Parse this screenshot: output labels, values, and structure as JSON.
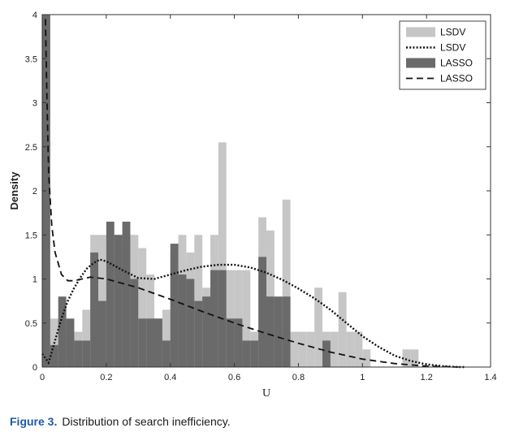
{
  "chart_data": {
    "type": "bar",
    "title": "",
    "xlabel": "U",
    "ylabel": "Density",
    "xlim": [
      0,
      1.4
    ],
    "ylim": [
      0,
      4
    ],
    "x_ticks": [
      "0",
      "0.2",
      "0.4",
      "0.6",
      "0.8",
      "1",
      "1.2",
      "1.4"
    ],
    "y_ticks": [
      "0",
      "0.5",
      "1",
      "1.5",
      "2",
      "2.5",
      "3",
      "3.5",
      "4"
    ],
    "legend_position": "top-right",
    "bin_width": 0.025,
    "series": [
      {
        "name": "LSDV",
        "kind": "histogram",
        "color": "#c6c6c6",
        "bin_starts": [
          0,
          0.025,
          0.05,
          0.075,
          0.1,
          0.125,
          0.15,
          0.175,
          0.2,
          0.225,
          0.25,
          0.275,
          0.3,
          0.325,
          0.35,
          0.375,
          0.4,
          0.425,
          0.45,
          0.475,
          0.5,
          0.525,
          0.55,
          0.575,
          0.6,
          0.625,
          0.65,
          0.675,
          0.7,
          0.725,
          0.75,
          0.775,
          0.8,
          0.825,
          0.85,
          0.875,
          0.9,
          0.925,
          0.95,
          0.975,
          1.0,
          1.025,
          1.05,
          1.075,
          1.1,
          1.125,
          1.15,
          1.175,
          1.2
        ],
        "values": [
          0.15,
          0.55,
          0.55,
          0.4,
          0.4,
          0.65,
          1.5,
          1.5,
          1.5,
          1.5,
          1.4,
          1.5,
          1.35,
          1.05,
          0.55,
          0.65,
          1.3,
          1.5,
          1.3,
          1.5,
          0.9,
          1.5,
          2.55,
          1.1,
          1.1,
          1.1,
          0.4,
          1.7,
          1.55,
          0.4,
          1.9,
          0.4,
          0.4,
          0.4,
          0.9,
          0.4,
          0.4,
          0.85,
          0.4,
          0.4,
          0.2,
          0,
          0,
          0,
          0,
          0.2,
          0.2,
          0,
          0
        ]
      },
      {
        "name": "LSDV",
        "kind": "density",
        "style": "dotted",
        "x": [
          0,
          0.02,
          0.04,
          0.06,
          0.08,
          0.1,
          0.12,
          0.14,
          0.16,
          0.18,
          0.2,
          0.25,
          0.3,
          0.35,
          0.4,
          0.45,
          0.5,
          0.55,
          0.6,
          0.65,
          0.7,
          0.75,
          0.8,
          0.85,
          0.9,
          0.95,
          1.0,
          1.05,
          1.1,
          1.15,
          1.2,
          1.25,
          1.3,
          1.32
        ],
        "y": [
          0.15,
          0.05,
          0.3,
          0.55,
          0.75,
          0.9,
          1.02,
          1.12,
          1.18,
          1.22,
          1.2,
          1.1,
          1.01,
          1.0,
          1.05,
          1.1,
          1.14,
          1.16,
          1.16,
          1.13,
          1.07,
          0.99,
          0.89,
          0.78,
          0.65,
          0.5,
          0.35,
          0.23,
          0.13,
          0.07,
          0.03,
          0.01,
          0.0,
          0.0
        ]
      },
      {
        "name": "LASSO",
        "kind": "histogram",
        "color": "#6a6a6a",
        "bin_starts": [
          0,
          0.025,
          0.05,
          0.075,
          0.1,
          0.125,
          0.15,
          0.175,
          0.2,
          0.225,
          0.25,
          0.275,
          0.3,
          0.325,
          0.35,
          0.375,
          0.4,
          0.425,
          0.45,
          0.475,
          0.5,
          0.525,
          0.55,
          0.575,
          0.6,
          0.625,
          0.65,
          0.675,
          0.7,
          0.725,
          0.75,
          0.875
        ],
        "values": [
          4,
          0.25,
          0.8,
          0.55,
          0.3,
          0.3,
          1.3,
          0.75,
          1.65,
          1.5,
          1.65,
          1.0,
          0.55,
          0.55,
          0.55,
          0.3,
          1.4,
          1.05,
          1.0,
          0.75,
          0.8,
          1.1,
          1.1,
          0.55,
          0.55,
          0.3,
          0.3,
          1.25,
          0.8,
          0.8,
          0.8,
          0.3
        ]
      },
      {
        "name": "LASSO",
        "kind": "density",
        "style": "dashed",
        "x": [
          0.01,
          0.015,
          0.02,
          0.03,
          0.04,
          0.06,
          0.08,
          0.1,
          0.15,
          0.2,
          0.3,
          0.4,
          0.5,
          0.6,
          0.7,
          0.8,
          0.9,
          1.0,
          1.1,
          1.2,
          1.3
        ],
        "y": [
          3.95,
          3.0,
          2.2,
          1.6,
          1.3,
          1.05,
          0.98,
          0.98,
          1.02,
          1.0,
          0.9,
          0.77,
          0.63,
          0.5,
          0.38,
          0.27,
          0.17,
          0.09,
          0.04,
          0.01,
          0.0
        ]
      }
    ]
  },
  "legend": {
    "items": [
      {
        "label": "LSDV",
        "swatch": "bar",
        "color": "#c6c6c6"
      },
      {
        "label": "LSDV",
        "swatch": "dotted"
      },
      {
        "label": "LASSO",
        "swatch": "bar",
        "color": "#6a6a6a"
      },
      {
        "label": "LASSO",
        "swatch": "dashed"
      }
    ]
  },
  "caption": {
    "label": "Figure 3.",
    "text": "Distribution of search inefficiency."
  }
}
